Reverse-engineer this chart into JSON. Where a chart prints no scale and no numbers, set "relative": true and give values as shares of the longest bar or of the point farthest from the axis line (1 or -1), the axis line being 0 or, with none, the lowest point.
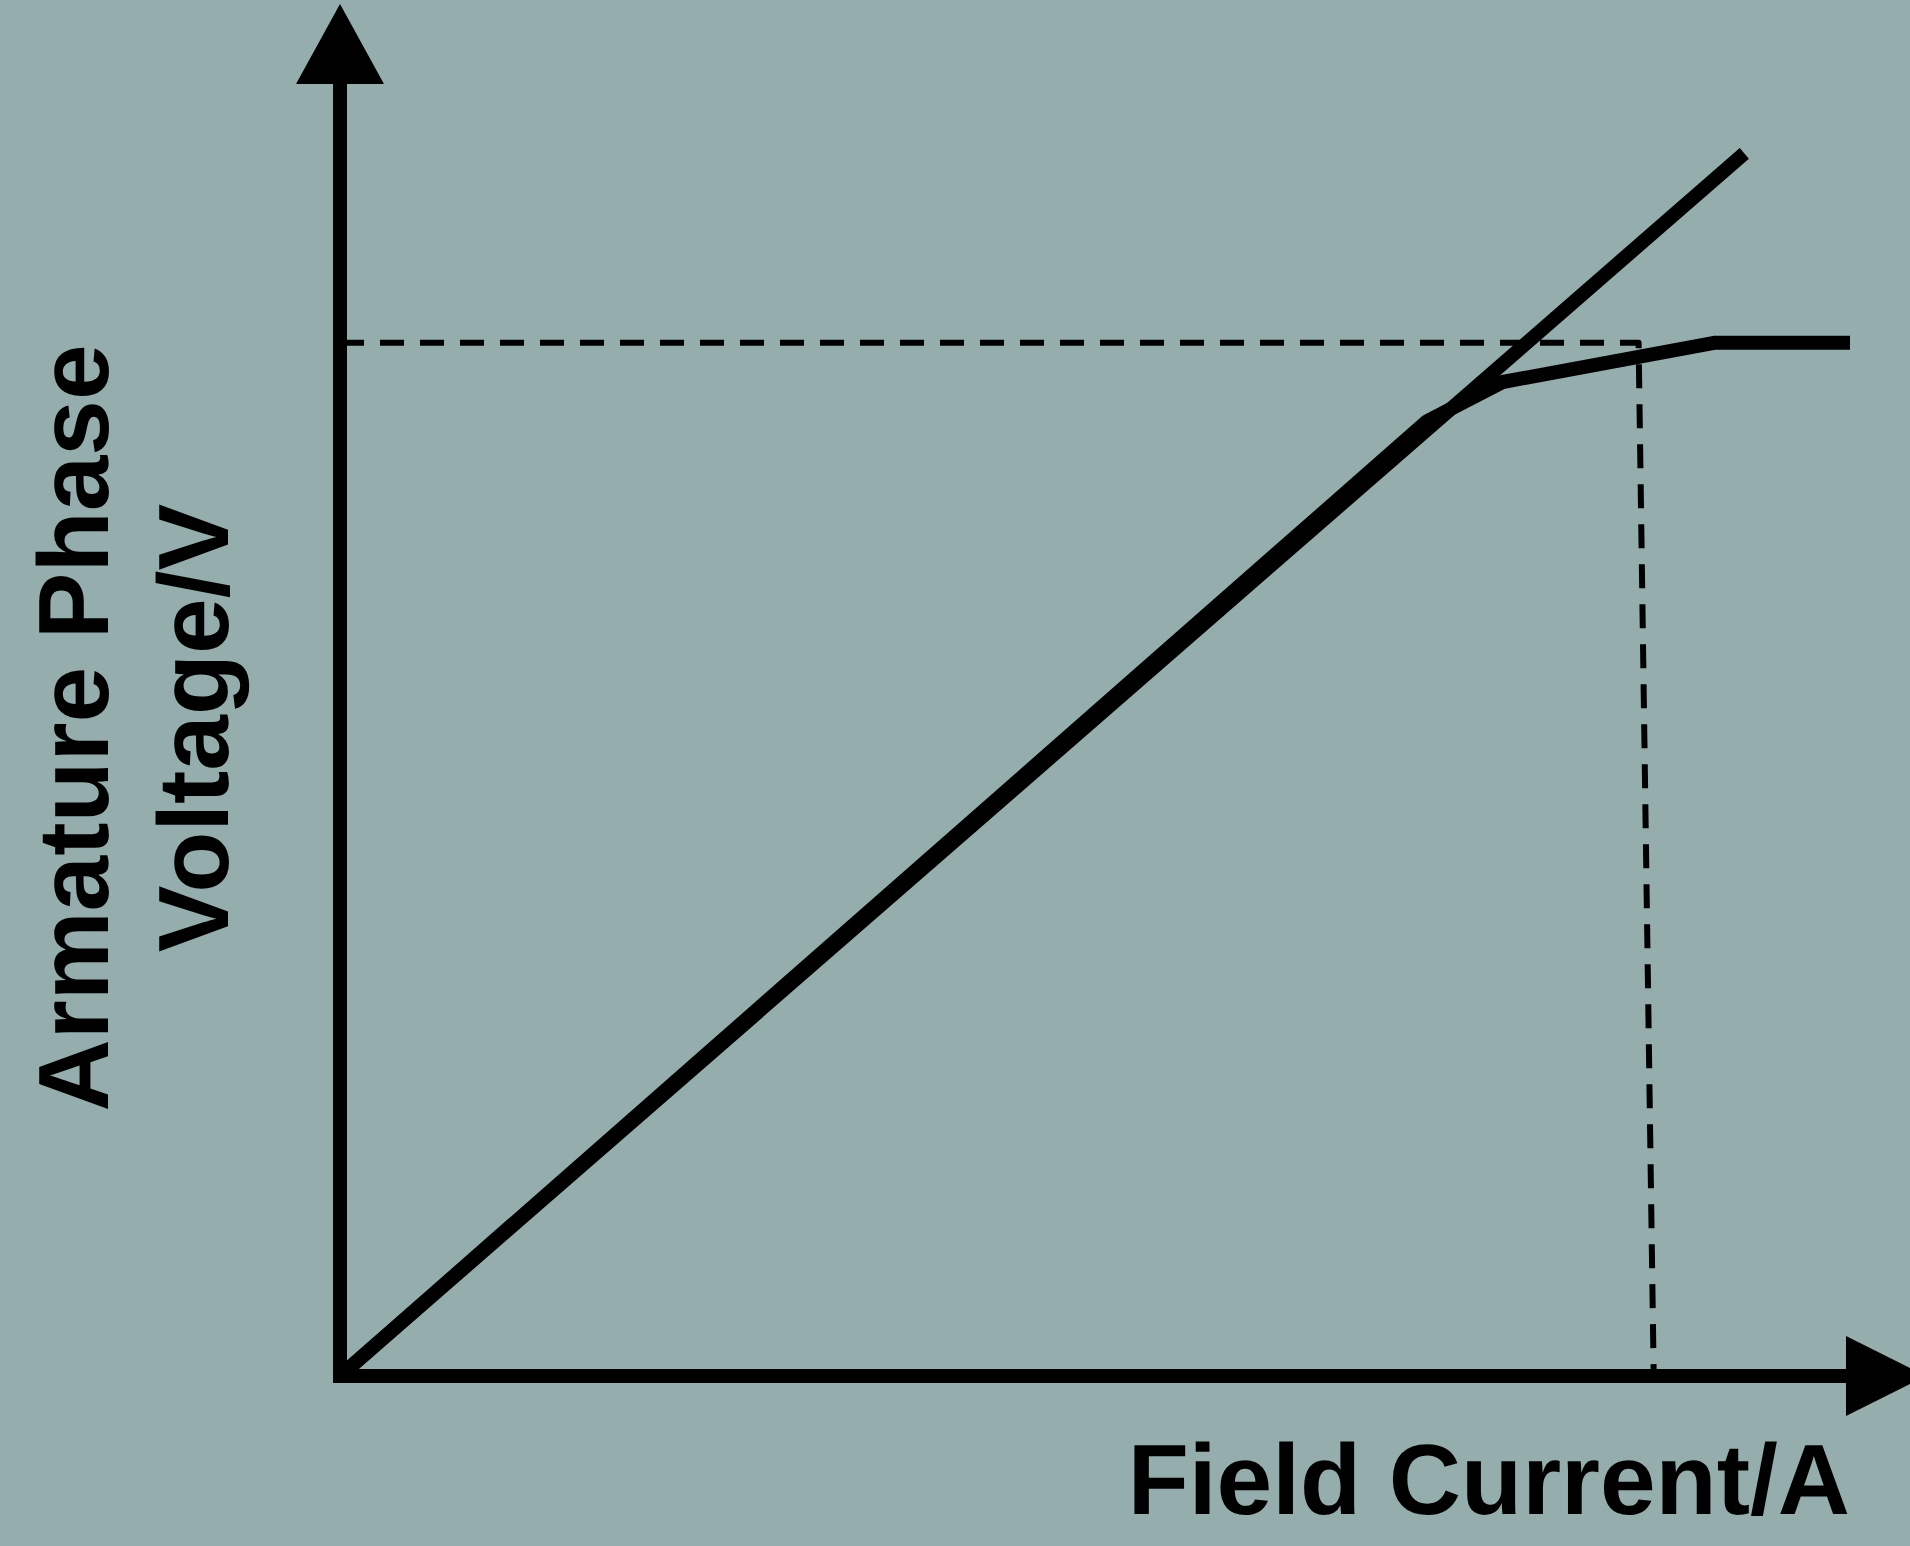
{
  "chart_data": {
    "type": "line",
    "relative": true,
    "xlabel": "Field Current/A",
    "ylabel": "Armature Phase Voltage/V",
    "grid": false,
    "legend": false,
    "marker": "none",
    "categories": [
      null,
      null,
      null,
      null,
      null,
      null,
      null,
      null,
      null,
      null,
      null,
      null,
      null,
      null,
      null,
      null,
      null,
      null,
      null,
      null,
      null,
      null,
      null,
      null,
      null,
      null,
      null,
      null,
      null,
      null,
      null,
      null,
      null,
      null,
      null,
      null,
      null,
      null,
      null,
      null,
      null,
      null,
      null,
      null,
      null,
      null,
      null,
      null,
      null,
      null,
      null,
      null,
      null,
      null,
      null,
      null,
      null,
      null,
      null,
      null,
      null,
      null,
      null,
      null,
      null,
      null,
      null,
      null,
      null,
      null,
      null,
      null,
      null,
      null,
      null,
      null,
      null,
      null,
      null,
      null,
      null,
      null,
      null,
      null,
      null,
      null,
      null,
      null,
      null,
      null,
      null,
      null,
      null,
      null,
      null,
      null,
      null,
      null,
      null,
      null,
      null
    ],
    "series": [
      {
        "color": "#000000",
        "line_style": "solid",
        "values": [
          0,
          null,
          null,
          null,
          null,
          null,
          null,
          null,
          null,
          null,
          null,
          null,
          null,
          null,
          null,
          null,
          null,
          null,
          null,
          null,
          null,
          null,
          null,
          null,
          null,
          null,
          null,
          null,
          null,
          null,
          null,
          null,
          null,
          null,
          null,
          null,
          null,
          null,
          null,
          null,
          null,
          null,
          null,
          null,
          null,
          null,
          null,
          null,
          null,
          null,
          null,
          null,
          null,
          null,
          null,
          null,
          null,
          null,
          null,
          null,
          null,
          null,
          null,
          null,
          null,
          null,
          null,
          null,
          null,
          null,
          null,
          null,
          null,
          null,
          null,
          null,
          null,
          null,
          null,
          null,
          null,
          null,
          null,
          null,
          null,
          null,
          null,
          null,
          null,
          null,
          null,
          null,
          null,
          1,
          null,
          null,
          null,
          null,
          null,
          null,
          null
        ]
      },
      {
        "color": "#000000",
        "line_style": "solid",
        "values": [
          0,
          null,
          null,
          null,
          null,
          null,
          null,
          null,
          null,
          null,
          null,
          null,
          null,
          null,
          null,
          null,
          null,
          null,
          null,
          null,
          null,
          null,
          null,
          null,
          null,
          null,
          null,
          null,
          null,
          null,
          null,
          null,
          null,
          null,
          null,
          null,
          null,
          null,
          null,
          null,
          null,
          null,
          null,
          null,
          null,
          null,
          null,
          null,
          null,
          null,
          null,
          null,
          null,
          null,
          null,
          null,
          null,
          null,
          null,
          null,
          null,
          null,
          null,
          null,
          null,
          null,
          null,
          null,
          null,
          null,
          null,
          null,
          0.781,
          null,
          null,
          null,
          null,
          0.813,
          null,
          null,
          null,
          null,
          null,
          null,
          null,
          null,
          null,
          null,
          null,
          null,
          null,
          0.845,
          null,
          null,
          null,
          null,
          null,
          null,
          null,
          null,
          0.845
        ]
      },
      {
        "color": "#000000",
        "line_style": "dashed",
        "values": [
          0.845,
          null,
          null,
          null,
          null,
          null,
          null,
          null,
          null,
          null,
          null,
          null,
          null,
          null,
          null,
          null,
          null,
          null,
          null,
          null,
          null,
          null,
          null,
          null,
          null,
          null,
          null,
          null,
          null,
          null,
          null,
          null,
          null,
          null,
          null,
          null,
          null,
          null,
          null,
          null,
          null,
          null,
          null,
          null,
          null,
          null,
          null,
          null,
          null,
          null,
          null,
          null,
          null,
          null,
          null,
          null,
          null,
          null,
          null,
          null,
          null,
          null,
          null,
          null,
          null,
          null,
          null,
          null,
          null,
          null,
          null,
          null,
          null,
          null,
          null,
          null,
          null,
          null,
          null,
          null,
          null,
          null,
          null,
          null,
          null,
          null,
          0.845,
          0,
          null,
          null,
          null,
          null,
          null,
          null,
          null,
          null,
          null,
          null,
          null,
          null,
          null
        ]
      }
    ]
  }
}
